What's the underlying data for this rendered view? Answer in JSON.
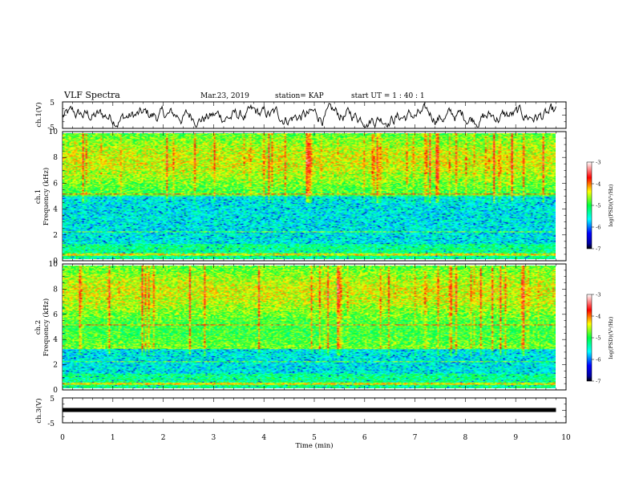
{
  "header": {
    "title": "VLF Spectra",
    "date": "Mar.23, 2019",
    "station": "station= KAP",
    "start": "start  UT =   1 : 40 : 1"
  },
  "chart_data": [
    {
      "type": "line",
      "panel": "ch1-waveform",
      "ylabel": "ch.1(V)",
      "ylim": [
        -5,
        5
      ],
      "yticks": [
        "5",
        "-5"
      ],
      "xlim": [
        0,
        10
      ],
      "trace_color": "#000000"
    },
    {
      "type": "heatmap",
      "panel": "ch1-spectrogram",
      "ylabel_channel": "ch.1",
      "ylabel": "Frequency (kHz)",
      "ylim": [
        0,
        10
      ],
      "yticks": [
        "0",
        "2",
        "4",
        "6",
        "8",
        "10"
      ],
      "xlim": [
        0,
        9.8
      ],
      "colorbar": {
        "label": "log(PSD)(V²/Hz)",
        "ticks": [
          "-3",
          "-4",
          "-5",
          "-6",
          "-7"
        ],
        "range": [
          -7,
          -3
        ]
      }
    },
    {
      "type": "heatmap",
      "panel": "ch2-spectrogram",
      "ylabel_channel": "ch.2",
      "ylabel": "Frequency (kHz)",
      "ylim": [
        0,
        10
      ],
      "yticks": [
        "0",
        "2",
        "4",
        "6",
        "8",
        "10"
      ],
      "xlim": [
        0,
        9.8
      ],
      "colorbar": {
        "label": "log(PSD)(V²/Hz)",
        "ticks": [
          "-3",
          "-4",
          "-5",
          "-6",
          "-7"
        ],
        "range": [
          -7,
          -3
        ]
      }
    },
    {
      "type": "line",
      "panel": "ch3-waveform",
      "ylabel": "ch.3(V)",
      "ylim": [
        -5,
        5
      ],
      "yticks": [
        "5",
        "-5"
      ],
      "x": [
        0,
        9.8
      ],
      "y": [
        -1.3,
        -1.3
      ],
      "trace_color": "#000000"
    }
  ],
  "xaxis": {
    "label": "Time (min)",
    "ticks": [
      "0",
      "1",
      "2",
      "3",
      "4",
      "5",
      "6",
      "7",
      "8",
      "9",
      "10"
    ],
    "range": [
      0,
      10
    ]
  }
}
